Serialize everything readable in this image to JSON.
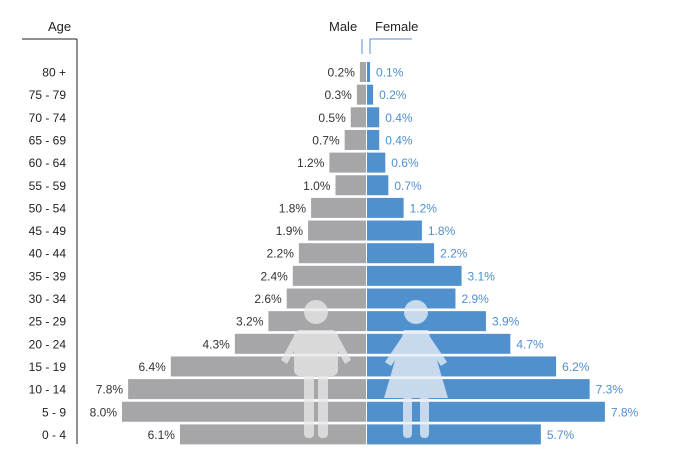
{
  "chart_data": {
    "type": "bar",
    "orientation": "horizontal-pyramid",
    "y_label": "Age",
    "categories": [
      "80 +",
      "75 - 79",
      "70 - 74",
      "65 - 69",
      "60 - 64",
      "55 - 59",
      "50 - 54",
      "45 - 49",
      "40 - 44",
      "35 - 39",
      "30 - 34",
      "25 - 29",
      "20 - 24",
      "15 - 19",
      "10 - 14",
      "5 - 9",
      "0 - 4"
    ],
    "series": [
      {
        "name": "Male",
        "values": [
          0.2,
          0.3,
          0.5,
          0.7,
          1.2,
          1.0,
          1.8,
          1.9,
          2.2,
          2.4,
          2.6,
          3.2,
          4.3,
          6.4,
          7.8,
          8.0,
          6.1
        ],
        "color": "#a6a6a8"
      },
      {
        "name": "Female",
        "values": [
          0.1,
          0.2,
          0.4,
          0.4,
          0.6,
          0.7,
          1.2,
          1.8,
          2.2,
          3.1,
          2.9,
          3.9,
          4.7,
          6.2,
          7.3,
          7.8,
          5.7
        ],
        "color": "#4f90cd"
      }
    ],
    "value_suffix": "%",
    "label_colors": {
      "male": "#333333",
      "female": "#4f90cd"
    },
    "icons": [
      "male-person-icon",
      "female-person-icon"
    ]
  }
}
